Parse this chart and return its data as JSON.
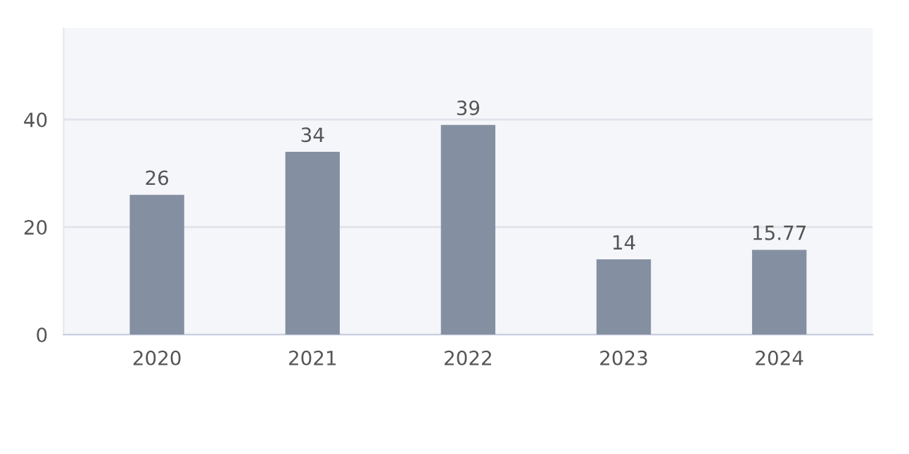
{
  "chart_data": {
    "type": "bar",
    "categories": [
      "2020",
      "2021",
      "2022",
      "2023",
      "2024"
    ],
    "values": [
      26,
      34,
      39,
      14,
      15.77
    ],
    "color": "#8490a1",
    "ylim": [
      0,
      57
    ],
    "yticks": [
      0,
      20,
      40
    ],
    "grid": "y",
    "data_labels": true
  }
}
